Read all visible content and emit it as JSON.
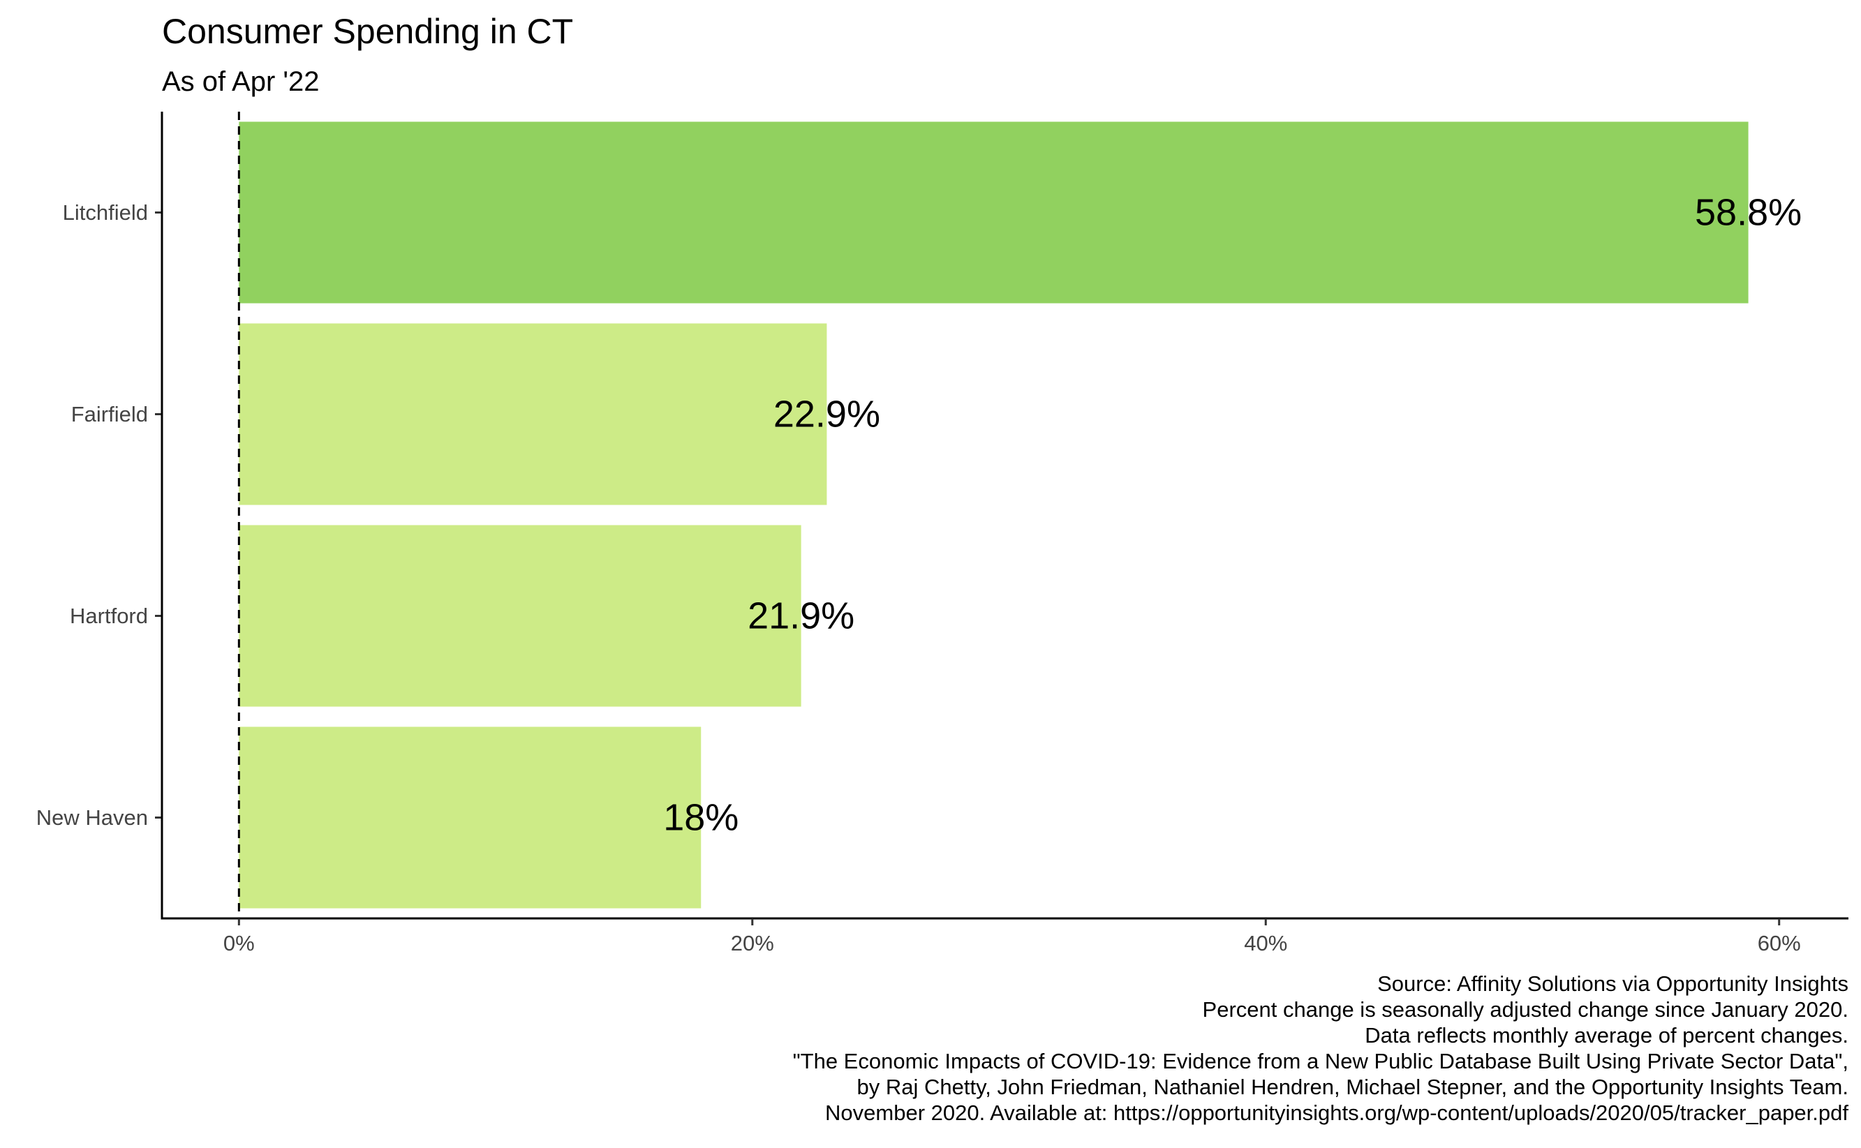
{
  "chart_data": {
    "type": "bar",
    "orientation": "horizontal",
    "title": "Consumer Spending in CT",
    "subtitle": "As of Apr '22",
    "xlabel": "",
    "ylabel": "",
    "categories": [
      "Litchfield",
      "Fairfield",
      "Hartford",
      "New Haven"
    ],
    "values": [
      58.8,
      22.9,
      21.9,
      18.0
    ],
    "data_labels": [
      "58.8%",
      "22.9%",
      "21.9%",
      "18%"
    ],
    "bar_colors": [
      "#91d15f",
      "#cdeb87",
      "#cdeb87",
      "#cdeb87"
    ],
    "x_ticks": [
      0,
      20,
      40,
      60
    ],
    "x_tick_labels": [
      "0%",
      "20%",
      "40%",
      "60%"
    ],
    "xlim": [
      -3,
      62.7
    ],
    "reference_line": {
      "x": 0,
      "style": "dashed"
    },
    "grid": false,
    "legend": "none",
    "caption": [
      "Source: Affinity Solutions via Opportunity Insights",
      "Percent change is seasonally adjusted change since January 2020.",
      "Data reflects monthly average of percent changes.",
      "\"The Economic Impacts of COVID-19: Evidence from a New Public Database Built Using Private Sector Data\",",
      "by Raj Chetty, John Friedman, Nathaniel Hendren, Michael Stepner, and the Opportunity Insights Team.",
      "November 2020. Available at: https://opportunityinsights.org/wp-content/uploads/2020/05/tracker_paper.pdf"
    ]
  }
}
